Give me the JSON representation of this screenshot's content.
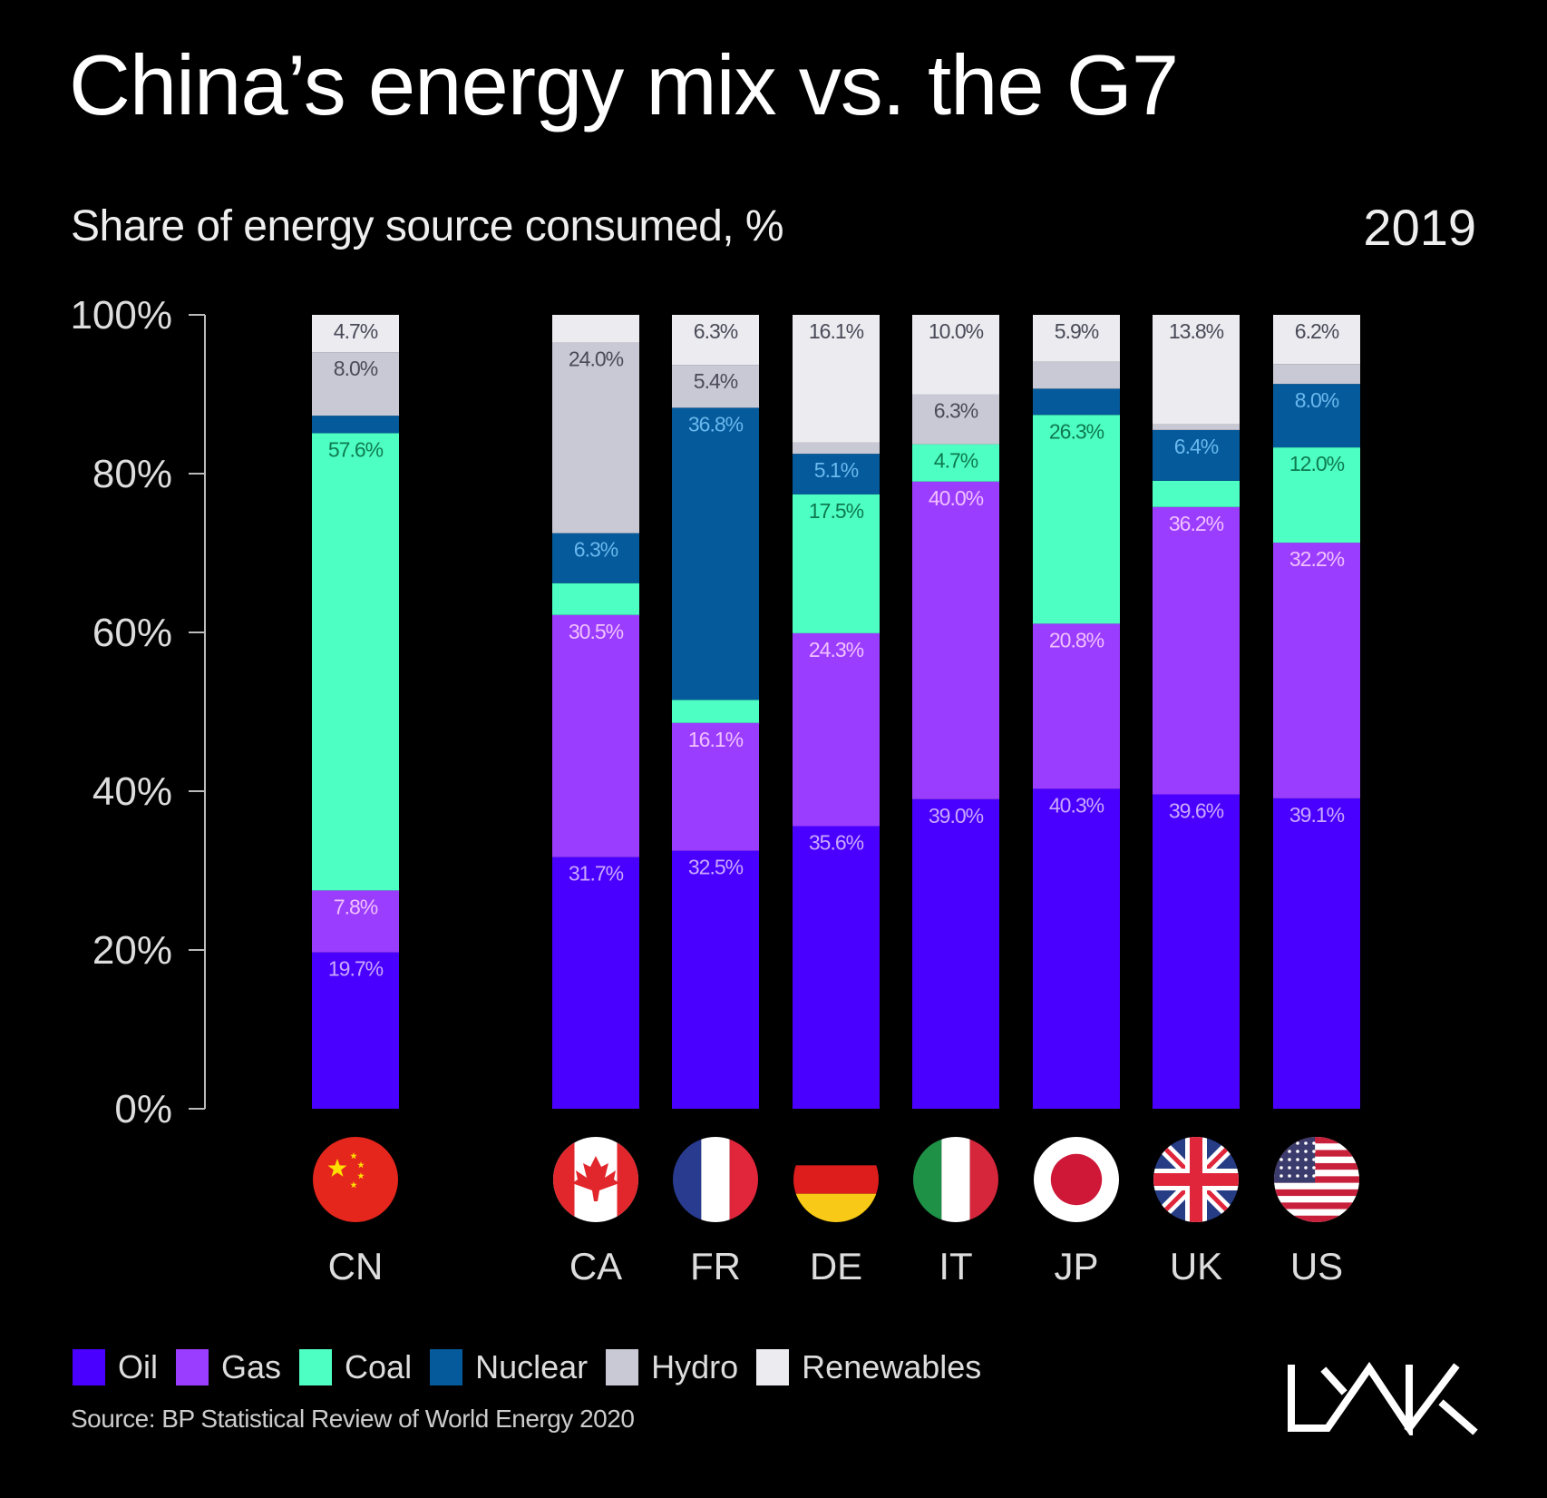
{
  "header": {
    "title": "China’s energy mix vs. the G7",
    "subtitle": "Share of energy source consumed, %",
    "year": "2019"
  },
  "chart_data": {
    "type": "bar",
    "stacked": true,
    "title": "China’s energy mix vs. the G7",
    "subtitle": "Share of energy source consumed, %",
    "xlabel": "",
    "ylabel": "",
    "ylim": [
      0,
      100
    ],
    "yticks": [
      "0%",
      "20%",
      "40%",
      "60%",
      "80%",
      "100%"
    ],
    "ytick_values": [
      0,
      20,
      40,
      60,
      80,
      100
    ],
    "grid": false,
    "legend_position": "bottom-left",
    "categories": [
      "CN",
      "CA",
      "FR",
      "DE",
      "IT",
      "JP",
      "UK",
      "US"
    ],
    "flags": [
      "china-flag",
      "canada-flag",
      "france-flag",
      "germany-flag",
      "italy-flag",
      "japan-flag",
      "uk-flag",
      "us-flag"
    ],
    "series": [
      {
        "name": "Oil",
        "color": "#4a00ff",
        "label_color": "#c9a8ff",
        "values": [
          19.7,
          31.7,
          32.5,
          35.6,
          39.0,
          40.3,
          39.6,
          39.1
        ],
        "labels": [
          "19.7%",
          "31.7%",
          "32.5%",
          "35.6%",
          "39.0%",
          "40.3%",
          "39.6%",
          "39.1%"
        ]
      },
      {
        "name": "Gas",
        "color": "#9b3dff",
        "label_color": "#f0c0ff",
        "values": [
          7.8,
          30.5,
          16.1,
          24.3,
          40.0,
          20.8,
          36.2,
          32.2
        ],
        "labels": [
          "7.8%",
          "30.5%",
          "16.1%",
          "24.3%",
          "40.0%",
          "20.8%",
          "36.2%",
          "32.2%"
        ]
      },
      {
        "name": "Coal",
        "color": "#4dffc3",
        "label_color": "#0e7a50",
        "values": [
          57.6,
          4.0,
          2.9,
          17.5,
          4.7,
          26.3,
          3.3,
          12.0
        ],
        "labels": [
          "57.6%",
          "",
          "",
          "17.5%",
          "4.7%",
          "26.3%",
          "",
          "12.0%"
        ]
      },
      {
        "name": "Nuclear",
        "color": "#045a9a",
        "label_color": "#6ab8ee",
        "values": [
          2.2,
          6.3,
          36.8,
          5.1,
          0,
          3.3,
          6.4,
          8.0
        ],
        "labels": [
          "",
          "6.3%",
          "36.8%",
          "5.1%",
          "",
          "",
          "6.4%",
          "8.0%"
        ]
      },
      {
        "name": "Hydro",
        "color": "#c9c9d6",
        "label_color": "#4a4a58",
        "values": [
          8.0,
          24.0,
          5.4,
          1.4,
          6.3,
          3.4,
          0.7,
          2.5
        ],
        "labels": [
          "8.0%",
          "24.0%",
          "5.4%",
          "",
          "6.3%",
          "",
          "",
          ""
        ]
      },
      {
        "name": "Renewables",
        "color": "#ebebf0",
        "label_color": "#4a4a58",
        "values": [
          4.7,
          3.5,
          6.3,
          16.1,
          10.0,
          5.9,
          13.8,
          6.2
        ],
        "labels": [
          "4.7%",
          "",
          "6.3%",
          "16.1%",
          "10.0%",
          "5.9%",
          "13.8%",
          "6.2%"
        ]
      }
    ]
  },
  "legend": {
    "items": [
      {
        "label": "Oil",
        "color": "#4a00ff"
      },
      {
        "label": "Gas",
        "color": "#9b3dff"
      },
      {
        "label": "Coal",
        "color": "#4dffc3"
      },
      {
        "label": "Nuclear",
        "color": "#045a9a"
      },
      {
        "label": "Hydro",
        "color": "#c9c9d6"
      },
      {
        "label": "Renewables",
        "color": "#ebebf0"
      }
    ]
  },
  "footer": {
    "source": "Source: BP Statistical Review of World Energy 2020",
    "logo": "LYNK"
  }
}
